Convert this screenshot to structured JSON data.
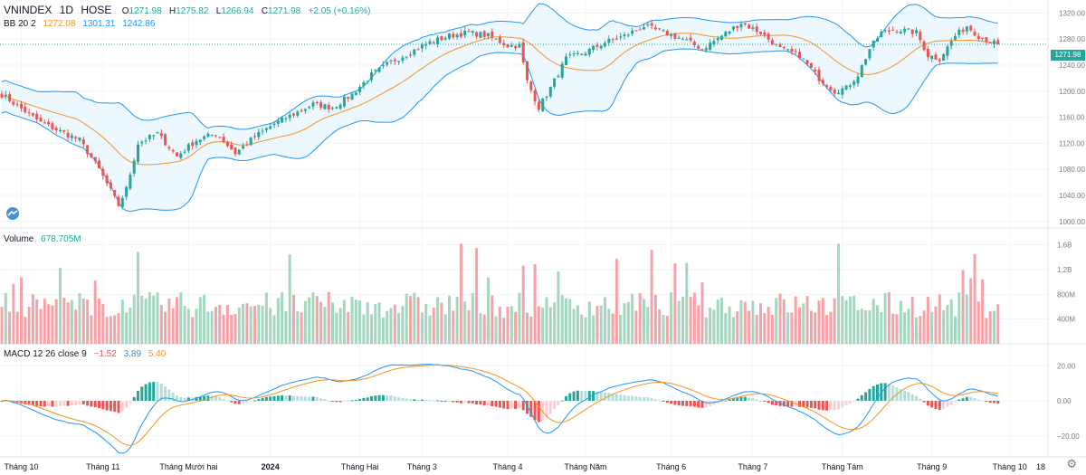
{
  "header": {
    "symbol": "VNINDEX",
    "interval": "1D",
    "exchange": "HOSE",
    "ohlc": {
      "o_label": "O",
      "o": "1271.98",
      "h_label": "H",
      "h": "1275.82",
      "l_label": "L",
      "l": "1266.94",
      "c_label": "C",
      "c": "1271.98",
      "change": "+2.05 (+0.16%)"
    }
  },
  "bb": {
    "label": "BB 20 2",
    "basis": "1272.08",
    "upper": "1301.31",
    "lower": "1242.86"
  },
  "volume": {
    "label": "Volume",
    "value": "678.705M"
  },
  "macd": {
    "label": "MACD 12 26 close 9",
    "hist": "−1.52",
    "macd": "3.89",
    "signal": "5.40"
  },
  "price_tag": "1271.98",
  "colors": {
    "up": "#26a69a",
    "down": "#ef5350",
    "bb_line": "#2196f3",
    "basis": "#f7931e",
    "bb_fill": "#e3f2fd"
  },
  "chart_data": [
    {
      "type": "candlestick",
      "title": "VNINDEX 1D HOSE",
      "indicator": "BB 20 2",
      "ylim": [
        990,
        1340
      ],
      "yticks": [
        "1320.00",
        "1280.00",
        "1240.00",
        "1200.00",
        "1160.00",
        "1120.00",
        "1080.00",
        "1040.00",
        "1000.00"
      ],
      "close_anchors": [
        [
          0,
          1195
        ],
        [
          10,
          1152
        ],
        [
          20,
          1125
        ],
        [
          25,
          1080
        ],
        [
          30,
          1025
        ],
        [
          32,
          1050
        ],
        [
          35,
          1120
        ],
        [
          40,
          1135
        ],
        [
          45,
          1100
        ],
        [
          50,
          1125
        ],
        [
          55,
          1135
        ],
        [
          60,
          1105
        ],
        [
          65,
          1130
        ],
        [
          70,
          1150
        ],
        [
          75,
          1165
        ],
        [
          80,
          1180
        ],
        [
          85,
          1175
        ],
        [
          90,
          1195
        ],
        [
          95,
          1225
        ],
        [
          100,
          1245
        ],
        [
          105,
          1260
        ],
        [
          110,
          1275
        ],
        [
          115,
          1285
        ],
        [
          120,
          1290
        ],
        [
          125,
          1285
        ],
        [
          130,
          1270
        ],
        [
          133,
          1270
        ],
        [
          135,
          1215
        ],
        [
          138,
          1175
        ],
        [
          141,
          1205
        ],
        [
          145,
          1250
        ],
        [
          150,
          1260
        ],
        [
          155,
          1275
        ],
        [
          160,
          1285
        ],
        [
          165,
          1300
        ],
        [
          170,
          1290
        ],
        [
          175,
          1280
        ],
        [
          180,
          1265
        ],
        [
          185,
          1285
        ],
        [
          190,
          1305
        ],
        [
          195,
          1290
        ],
        [
          200,
          1265
        ],
        [
          205,
          1255
        ],
        [
          210,
          1220
        ],
        [
          214,
          1200
        ],
        [
          217,
          1205
        ],
        [
          220,
          1225
        ],
        [
          223,
          1265
        ],
        [
          226,
          1290
        ],
        [
          230,
          1295
        ],
        [
          235,
          1290
        ],
        [
          238,
          1255
        ],
        [
          241,
          1250
        ],
        [
          245,
          1285
        ],
        [
          248,
          1300
        ],
        [
          251,
          1285
        ],
        [
          254,
          1276
        ],
        [
          256,
          1272
        ]
      ]
    },
    {
      "type": "bar",
      "title": "Volume",
      "ylim": [
        0,
        1800
      ],
      "yticks": [
        "1.6B",
        "1.2B",
        "800M",
        "400M"
      ],
      "unit": "M"
    },
    {
      "type": "line",
      "title": "MACD 12 26 close 9",
      "ylim": [
        -32,
        32
      ],
      "yticks": [
        "20.00",
        "0.00",
        "−20.00"
      ],
      "series": [
        "MACD",
        "Signal",
        "Histogram"
      ]
    }
  ],
  "x_axis": {
    "labels": [
      {
        "text": "Tháng 10",
        "i": 5,
        "bold": false
      },
      {
        "text": "Tháng 11",
        "i": 26,
        "bold": false
      },
      {
        "text": "Tháng Mười hai",
        "i": 48,
        "bold": false
      },
      {
        "text": "2024",
        "i": 69,
        "bold": true
      },
      {
        "text": "Tháng Hai",
        "i": 92,
        "bold": false
      },
      {
        "text": "Tháng 3",
        "i": 108,
        "bold": false
      },
      {
        "text": "Tháng 4",
        "i": 130,
        "bold": false
      },
      {
        "text": "Tháng Năm",
        "i": 150,
        "bold": false
      },
      {
        "text": "Tháng 6",
        "i": 172,
        "bold": false
      },
      {
        "text": "Tháng 7",
        "i": 193,
        "bold": false
      },
      {
        "text": "Tháng Tám",
        "i": 216,
        "bold": false
      },
      {
        "text": "Tháng 9",
        "i": 239,
        "bold": false
      },
      {
        "text": "Tháng 10",
        "i": 259,
        "bold": false
      },
      {
        "text": "18",
        "i": 270,
        "bold": false
      }
    ]
  }
}
